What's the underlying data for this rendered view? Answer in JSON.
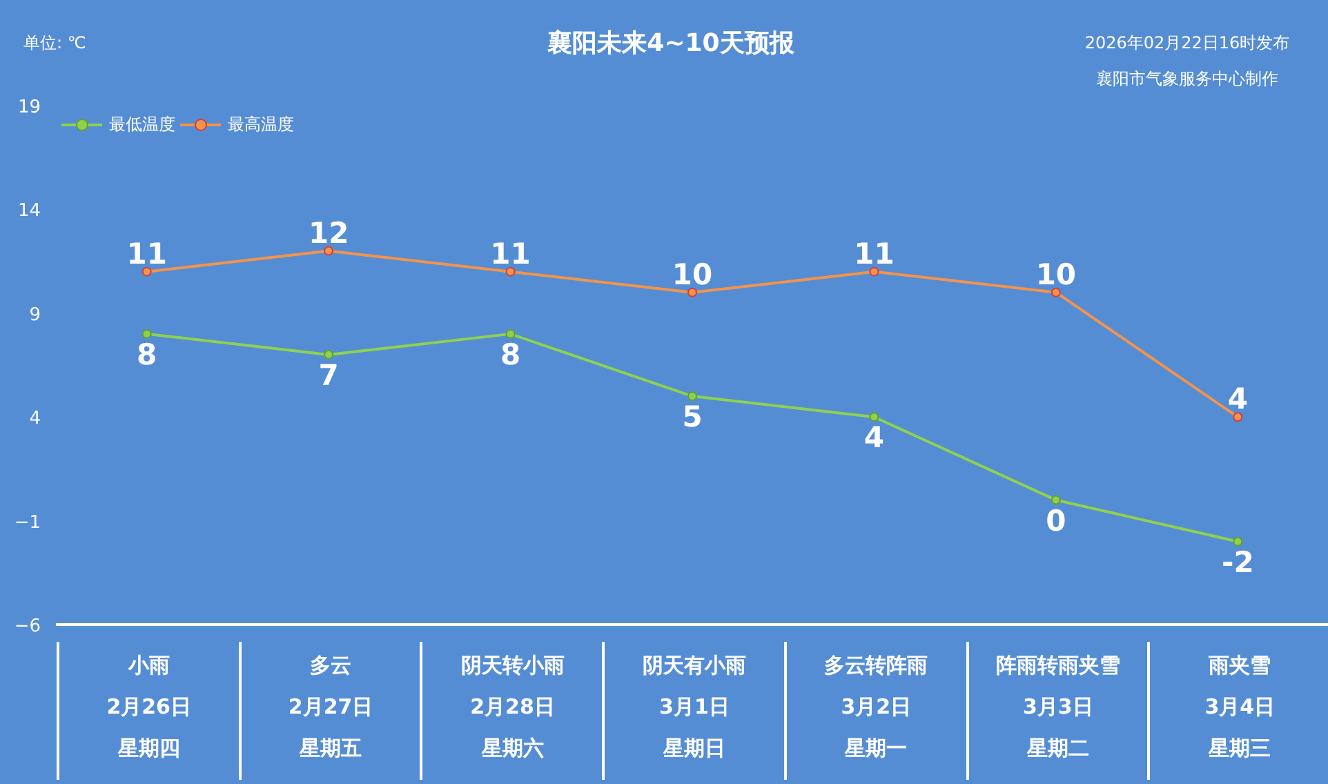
{
  "chart_data": {
    "type": "line",
    "title": "襄阳未来4~10天预报",
    "categories": [
      "2月26日",
      "2月27日",
      "2月28日",
      "3月1日",
      "3月2日",
      "3月3日",
      "3月4日"
    ],
    "series": [
      {
        "name": "最低温度",
        "color": "#8fd14f",
        "values": [
          8,
          7,
          8,
          5,
          4,
          0,
          -2
        ]
      },
      {
        "name": "最高温度",
        "color": "#f4934b",
        "values": [
          11,
          12,
          11,
          10,
          11,
          10,
          4
        ]
      }
    ],
    "ylim": [
      -6,
      19
    ],
    "yticks": [
      -6,
      -1,
      4,
      9,
      14,
      19
    ],
    "annotations": [
      "单位: ℃",
      "2026年02月22日16时发布",
      "襄阳市气象服务中心制作",
      "小雨",
      "多云",
      "阴天转小雨",
      "阴天有小雨",
      "多云转阵雨",
      "阵雨转雨夹雪",
      "雨夹雪",
      "星期四",
      "星期五",
      "星期六",
      "星期日",
      "星期一",
      "星期二",
      "星期三"
    ],
    "data_labels": true,
    "legend": "top left",
    "marker": "circle",
    "line_style": "solid"
  }
}
